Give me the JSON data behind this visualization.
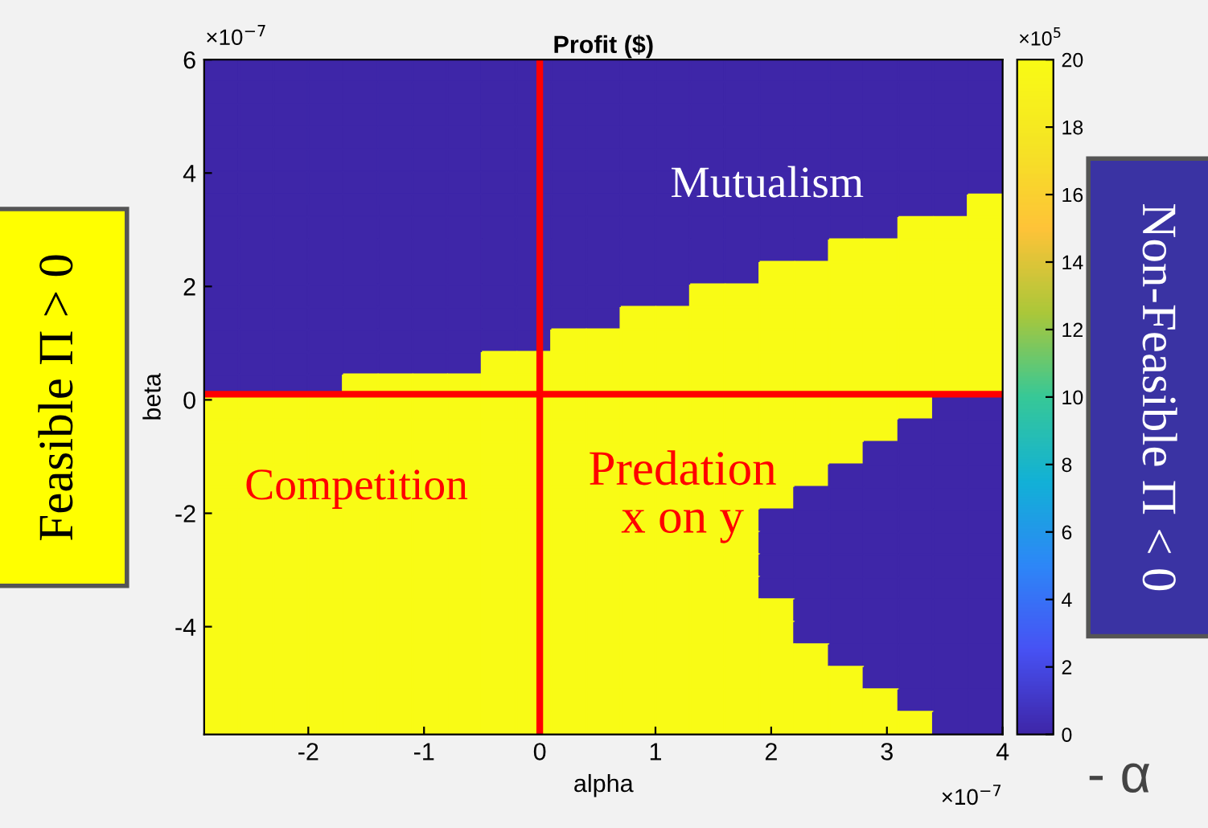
{
  "chart_data": {
    "type": "heatmap",
    "title": "Profit ($)",
    "xlabel": "alpha",
    "ylabel": "beta",
    "xlim": [
      -2.9,
      4
    ],
    "xticks": [
      -2,
      -1,
      0,
      1,
      2,
      3,
      4
    ],
    "ylim": [
      -5.9,
      6
    ],
    "yticks": [
      -4,
      -2,
      0,
      2,
      4,
      6
    ],
    "clim": [
      0,
      20
    ],
    "cticks": [
      0,
      2,
      4,
      6,
      8,
      10,
      12,
      14,
      16,
      18,
      20
    ],
    "cells": [
      [
        0,
        0,
        0,
        0,
        0,
        0,
        0,
        0,
        0,
        0,
        0,
        0,
        0,
        0,
        0,
        0,
        0,
        0,
        0,
        0,
        0,
        0,
        0
      ],
      [
        0,
        0,
        0,
        0,
        0,
        0,
        0,
        0,
        0,
        0,
        0,
        0,
        0,
        0,
        0,
        0,
        0,
        0,
        0,
        0,
        0,
        0,
        0
      ],
      [
        0,
        0,
        0,
        0,
        0,
        0,
        0,
        0,
        0,
        0,
        0,
        0,
        0,
        0,
        0,
        0,
        0,
        0,
        0,
        0,
        0,
        0,
        0
      ],
      [
        0,
        0,
        0,
        0,
        0,
        0,
        0,
        0,
        0,
        0,
        0,
        0,
        0,
        0,
        0,
        0,
        0,
        0,
        0,
        0,
        0,
        0,
        0
      ],
      [
        0,
        0,
        0,
        0,
        0,
        0,
        0,
        0,
        0,
        0,
        0,
        0,
        0,
        0,
        0,
        0,
        0,
        0,
        0,
        0,
        0,
        0,
        0
      ],
      [
        0,
        0,
        0,
        0,
        0,
        0,
        0,
        0,
        0,
        0,
        0,
        0,
        0,
        0,
        0,
        0,
        0,
        0,
        0,
        0,
        0,
        0,
        0
      ],
      [
        0,
        0,
        0,
        0,
        0,
        0,
        0,
        0,
        0,
        0,
        0,
        0,
        0,
        0,
        0,
        0,
        0,
        0,
        0,
        0,
        0,
        0,
        20
      ],
      [
        0,
        0,
        0,
        0,
        0,
        0,
        0,
        0,
        0,
        0,
        0,
        0,
        0,
        0,
        0,
        0,
        0,
        0,
        0,
        0,
        20,
        20,
        20
      ],
      [
        0,
        0,
        0,
        0,
        0,
        0,
        0,
        0,
        0,
        0,
        0,
        0,
        0,
        0,
        0,
        0,
        0,
        0,
        20,
        20,
        20,
        20,
        20
      ],
      [
        0,
        0,
        0,
        0,
        0,
        0,
        0,
        0,
        0,
        0,
        0,
        0,
        0,
        0,
        0,
        0,
        20,
        20,
        20,
        20,
        20,
        20,
        20
      ],
      [
        0,
        0,
        0,
        0,
        0,
        0,
        0,
        0,
        0,
        0,
        0,
        0,
        0,
        0,
        20,
        20,
        20,
        20,
        20,
        20,
        20,
        20,
        20
      ],
      [
        0,
        0,
        0,
        0,
        0,
        0,
        0,
        0,
        0,
        0,
        0,
        0,
        20,
        20,
        20,
        20,
        20,
        20,
        20,
        20,
        20,
        20,
        20
      ],
      [
        0,
        0,
        0,
        0,
        0,
        0,
        0,
        0,
        0,
        0,
        20,
        20,
        20,
        20,
        20,
        20,
        20,
        20,
        20,
        20,
        20,
        20,
        20
      ],
      [
        0,
        0,
        0,
        0,
        0,
        0,
        0,
        0,
        20,
        20,
        20,
        20,
        20,
        20,
        20,
        20,
        20,
        20,
        20,
        20,
        20,
        20,
        20
      ],
      [
        0,
        0,
        0,
        0,
        20,
        20,
        20,
        20,
        20,
        20,
        20,
        20,
        20,
        20,
        20,
        20,
        20,
        20,
        20,
        20,
        20,
        20,
        20
      ],
      [
        20,
        20,
        20,
        20,
        20,
        20,
        20,
        20,
        20,
        20,
        20,
        20,
        20,
        20,
        20,
        20,
        20,
        20,
        20,
        20,
        20,
        0,
        0
      ],
      [
        20,
        20,
        20,
        20,
        20,
        20,
        20,
        20,
        20,
        20,
        20,
        20,
        20,
        20,
        20,
        20,
        20,
        20,
        20,
        20,
        0,
        0,
        0
      ],
      [
        20,
        20,
        20,
        20,
        20,
        20,
        20,
        20,
        20,
        20,
        20,
        20,
        20,
        20,
        20,
        20,
        20,
        20,
        20,
        0,
        0,
        0,
        0
      ],
      [
        20,
        20,
        20,
        20,
        20,
        20,
        20,
        20,
        20,
        20,
        20,
        20,
        20,
        20,
        20,
        20,
        20,
        20,
        0,
        0,
        0,
        0,
        0
      ],
      [
        20,
        20,
        20,
        20,
        20,
        20,
        20,
        20,
        20,
        20,
        20,
        20,
        20,
        20,
        20,
        20,
        20,
        0,
        0,
        0,
        0,
        0,
        0
      ],
      [
        20,
        20,
        20,
        20,
        20,
        20,
        20,
        20,
        20,
        20,
        20,
        20,
        20,
        20,
        20,
        20,
        0,
        0,
        0,
        0,
        0,
        0,
        0
      ],
      [
        20,
        20,
        20,
        20,
        20,
        20,
        20,
        20,
        20,
        20,
        20,
        20,
        20,
        20,
        20,
        20,
        0,
        0,
        0,
        0,
        0,
        0,
        0
      ],
      [
        20,
        20,
        20,
        20,
        20,
        20,
        20,
        20,
        20,
        20,
        20,
        20,
        20,
        20,
        20,
        20,
        0,
        0,
        0,
        0,
        0,
        0,
        0
      ],
      [
        20,
        20,
        20,
        20,
        20,
        20,
        20,
        20,
        20,
        20,
        20,
        20,
        20,
        20,
        20,
        20,
        0,
        0,
        0,
        0,
        0,
        0,
        0
      ],
      [
        20,
        20,
        20,
        20,
        20,
        20,
        20,
        20,
        20,
        20,
        20,
        20,
        20,
        20,
        20,
        20,
        20,
        0,
        0,
        0,
        0,
        0,
        0
      ],
      [
        20,
        20,
        20,
        20,
        20,
        20,
        20,
        20,
        20,
        20,
        20,
        20,
        20,
        20,
        20,
        20,
        20,
        0,
        0,
        0,
        0,
        0,
        0
      ],
      [
        20,
        20,
        20,
        20,
        20,
        20,
        20,
        20,
        20,
        20,
        20,
        20,
        20,
        20,
        20,
        20,
        20,
        20,
        0,
        0,
        0,
        0,
        0
      ],
      [
        20,
        20,
        20,
        20,
        20,
        20,
        20,
        20,
        20,
        20,
        20,
        20,
        20,
        20,
        20,
        20,
        20,
        20,
        20,
        0,
        0,
        0,
        0
      ],
      [
        20,
        20,
        20,
        20,
        20,
        20,
        20,
        20,
        20,
        20,
        20,
        20,
        20,
        20,
        20,
        20,
        20,
        20,
        20,
        20,
        0,
        0,
        0
      ],
      [
        20,
        20,
        20,
        20,
        20,
        20,
        20,
        20,
        20,
        20,
        20,
        20,
        20,
        20,
        20,
        20,
        20,
        20,
        20,
        20,
        20,
        0,
        0
      ]
    ],
    "ref_lines": [
      {
        "axis": "x",
        "value": 0,
        "color": "#ff0000"
      },
      {
        "axis": "y",
        "value": 0.1,
        "color": "#ff0000"
      }
    ],
    "annotations": [
      "Mutualism",
      "Competition",
      "Predation\nx on y",
      "×10$^{−7}$",
      "×10$^{−7}$",
      "×10$^{5}$",
      "Feasible Π > 0",
      "Non-Feasible Π < 0",
      "- α"
    ],
    "grid": false
  }
}
